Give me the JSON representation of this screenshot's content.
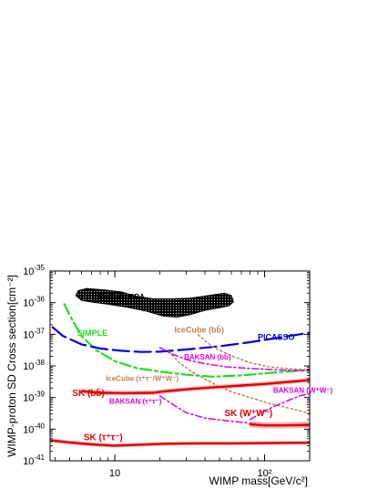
{
  "chart_data": {
    "type": "line",
    "xlabel": "WIMP mass[GeV/c²]",
    "ylabel": "WIMP-proton SD Cross section[cm⁻²]",
    "x_scale": "log",
    "y_scale": "log",
    "xlim": [
      3.7,
      200
    ],
    "ylim_exp": [
      -41,
      -35
    ],
    "x_ticks": [
      {
        "value": 10,
        "label": "10"
      },
      {
        "value": 100,
        "label": "10²"
      }
    ],
    "y_ticks": [
      {
        "value": -41,
        "base": "10",
        "exp": "-41"
      },
      {
        "value": -40,
        "base": "10",
        "exp": "-40"
      },
      {
        "value": -39,
        "base": "10",
        "exp": "-39"
      },
      {
        "value": -38,
        "base": "10",
        "exp": "-38"
      },
      {
        "value": -37,
        "base": "10",
        "exp": "-37"
      },
      {
        "value": -36,
        "base": "10",
        "exp": "-36"
      },
      {
        "value": -35,
        "base": "10",
        "exp": "-35"
      }
    ],
    "region": {
      "name": "DAMA/LIBRA",
      "color": "#000000",
      "label_at": [
        7.8,
        -35.9
      ],
      "boundary": [
        [
          5.5,
          -35.78
        ],
        [
          5.7,
          -35.62
        ],
        [
          6.5,
          -35.55
        ],
        [
          8.5,
          -35.6
        ],
        [
          11,
          -35.66
        ],
        [
          14,
          -35.8
        ],
        [
          18,
          -35.88
        ],
        [
          24,
          -35.88
        ],
        [
          32,
          -35.86
        ],
        [
          42,
          -35.78
        ],
        [
          54,
          -35.7
        ],
        [
          60,
          -35.78
        ],
        [
          62,
          -35.97
        ],
        [
          58,
          -36.1
        ],
        [
          50,
          -36.16
        ],
        [
          40,
          -36.24
        ],
        [
          32,
          -36.38
        ],
        [
          26,
          -36.46
        ],
        [
          21,
          -36.42
        ],
        [
          16,
          -36.26
        ],
        [
          12,
          -36.14
        ],
        [
          9,
          -36.05
        ],
        [
          7,
          -35.98
        ],
        [
          6,
          -35.93
        ]
      ]
    },
    "series": [
      {
        "name": "SIMPLE",
        "color": "#22dd22",
        "dash": "12,4,3,4",
        "width": 2.2,
        "label_at": [
          5.6,
          -37.05
        ],
        "label_size": 9,
        "points": [
          [
            4.6,
            -36.05
          ],
          [
            5.2,
            -36.55
          ],
          [
            6,
            -37.05
          ],
          [
            7.5,
            -37.5
          ],
          [
            10,
            -37.85
          ],
          [
            14,
            -38.07
          ],
          [
            20,
            -38.18
          ],
          [
            30,
            -38.28
          ],
          [
            45,
            -38.34
          ],
          [
            70,
            -38.3
          ],
          [
            110,
            -38.22
          ],
          [
            160,
            -38.16
          ],
          [
            200,
            -38.13
          ]
        ]
      },
      {
        "name": "PICASSO",
        "color": "#0000dd",
        "dash": "18,6",
        "width": 2.2,
        "label_at": [
          90,
          -37.18
        ],
        "label_size": 9,
        "points": [
          [
            3.85,
            -36.78
          ],
          [
            4.5,
            -37.05
          ],
          [
            6,
            -37.32
          ],
          [
            8,
            -37.45
          ],
          [
            11,
            -37.52
          ],
          [
            15,
            -37.56
          ],
          [
            20,
            -37.55
          ],
          [
            30,
            -37.48
          ],
          [
            50,
            -37.38
          ],
          [
            80,
            -37.25
          ],
          [
            120,
            -37.12
          ],
          [
            200,
            -36.95
          ]
        ]
      },
      {
        "name": "IceCube (bb̄)",
        "color": "#c08050",
        "dash": "2,3",
        "width": 1.5,
        "label_at": [
          25,
          -36.95
        ],
        "label_size": 9,
        "points": [
          [
            36,
            -37.02
          ],
          [
            45,
            -37.4
          ],
          [
            60,
            -37.68
          ],
          [
            80,
            -37.9
          ],
          [
            110,
            -38.04
          ],
          [
            160,
            -38.1
          ],
          [
            200,
            -38.12
          ]
        ]
      },
      {
        "name": "IceCube (τ⁺τ⁻/W⁺W⁻)",
        "color": "#c08050",
        "dash": "2,3",
        "width": 1.5,
        "label_at": [
          8.7,
          -38.48
        ],
        "label_size": 8,
        "points": [
          [
            23,
            -37.55
          ],
          [
            27,
            -37.9
          ],
          [
            33,
            -38.2
          ],
          [
            45,
            -38.55
          ],
          [
            60,
            -38.82
          ],
          [
            80,
            -39
          ],
          [
            110,
            -39.2
          ],
          [
            150,
            -39.35
          ],
          [
            200,
            -39.5
          ]
        ]
      },
      {
        "name": "BAKSAN (bb̄)",
        "color": "#dd00dd",
        "dash": "7,3,2,3",
        "width": 1.5,
        "label_at": [
          29,
          -37.8
        ],
        "label_size": 8,
        "points": [
          [
            20,
            -37.42
          ],
          [
            24,
            -37.62
          ],
          [
            30,
            -37.8
          ],
          [
            40,
            -37.93
          ],
          [
            55,
            -38.03
          ],
          [
            80,
            -38.08
          ],
          [
            120,
            -38.12
          ],
          [
            200,
            -38.16
          ]
        ]
      },
      {
        "name": "BAKSAN (τ⁺τ⁻)",
        "color": "#dd00dd",
        "dash": "7,3,2,3",
        "width": 1.5,
        "label_at": [
          9.2,
          -39.2
        ],
        "label_size": 8,
        "points": [
          [
            20,
            -38.95
          ],
          [
            25,
            -39.25
          ],
          [
            30,
            -39.48
          ],
          [
            40,
            -39.65
          ],
          [
            60,
            -39.75
          ],
          [
            100,
            -39.85
          ],
          [
            200,
            -39.92
          ]
        ]
      },
      {
        "name": "BAKSAN (W⁺W⁻)",
        "color": "#dd00dd",
        "dash": "7,3,2,3",
        "width": 1.5,
        "label_at": [
          114,
          -38.85
        ],
        "label_size": 8,
        "points": [
          [
            80,
            -39.7
          ],
          [
            100,
            -39.42
          ],
          [
            130,
            -39.18
          ],
          [
            170,
            -38.95
          ],
          [
            200,
            -38.88
          ]
        ]
      },
      {
        "name": "SK (bb̄)",
        "color": "#e00000",
        "dash": "",
        "width": 2.4,
        "band": 0.07,
        "label_at": [
          5.2,
          -38.95
        ],
        "label_size": 10,
        "points": [
          [
            6,
            -38.8
          ],
          [
            8,
            -38.85
          ],
          [
            12,
            -38.86
          ],
          [
            18,
            -38.85
          ],
          [
            20,
            -38.82
          ],
          [
            30,
            -38.74
          ],
          [
            45,
            -38.68
          ],
          [
            70,
            -38.62
          ],
          [
            100,
            -38.57
          ],
          [
            150,
            -38.5
          ],
          [
            200,
            -38.45
          ]
        ]
      },
      {
        "name": "SK (τ⁺τ⁻)",
        "color": "#e00000",
        "dash": "",
        "width": 2.4,
        "band": 0.06,
        "label_at": [
          6.2,
          -40.35
        ],
        "label_size": 10,
        "points": [
          [
            3.7,
            -40.35
          ],
          [
            5,
            -40.42
          ],
          [
            7,
            -40.48
          ],
          [
            10,
            -40.52
          ],
          [
            15,
            -40.49
          ],
          [
            22,
            -40.46
          ],
          [
            35,
            -40.45
          ],
          [
            60,
            -40.45
          ],
          [
            100,
            -40.44
          ],
          [
            200,
            -40.43
          ]
        ]
      },
      {
        "name": "SK (W⁺W⁻)",
        "color": "#e00000",
        "dash": "",
        "width": 2.4,
        "band": 0.1,
        "label_at": [
          54,
          -39.58
        ],
        "label_size": 10,
        "points": [
          [
            80,
            -39.85
          ],
          [
            100,
            -39.88
          ],
          [
            130,
            -39.88
          ],
          [
            170,
            -39.87
          ],
          [
            200,
            -39.86
          ]
        ]
      }
    ]
  }
}
